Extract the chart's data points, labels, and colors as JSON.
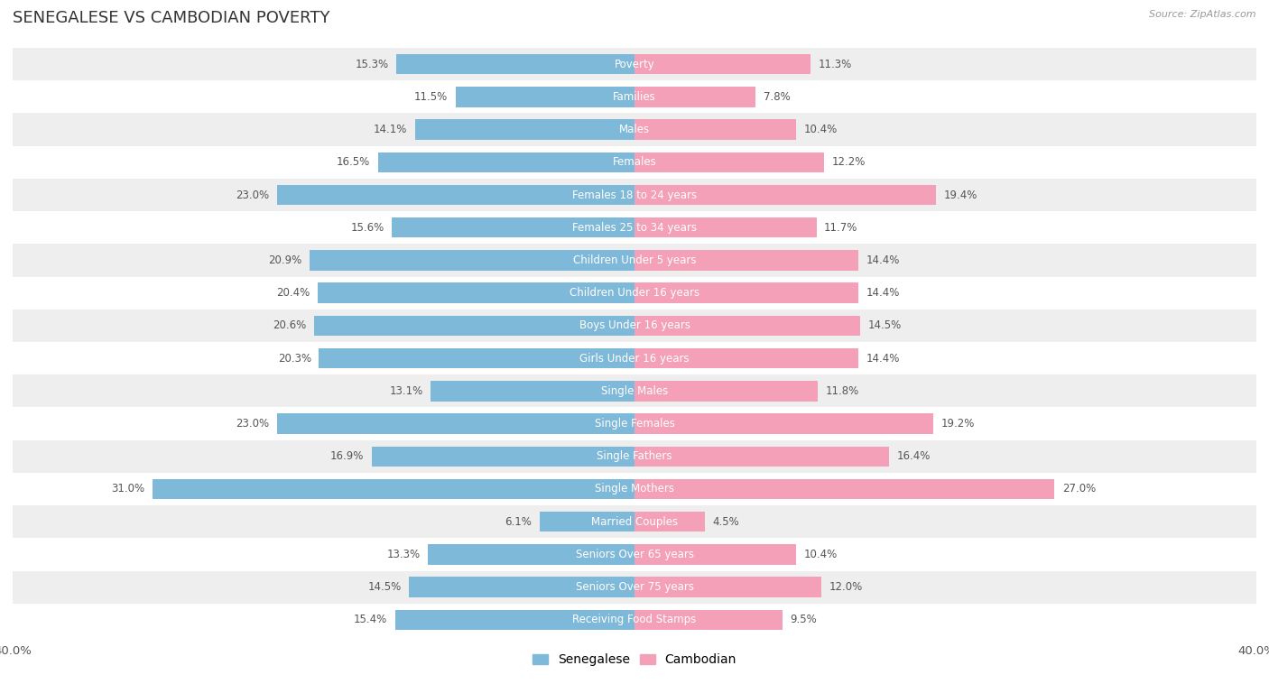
{
  "title": "SENEGALESE VS CAMBODIAN POVERTY",
  "source": "Source: ZipAtlas.com",
  "categories": [
    "Poverty",
    "Families",
    "Males",
    "Females",
    "Females 18 to 24 years",
    "Females 25 to 34 years",
    "Children Under 5 years",
    "Children Under 16 years",
    "Boys Under 16 years",
    "Girls Under 16 years",
    "Single Males",
    "Single Females",
    "Single Fathers",
    "Single Mothers",
    "Married Couples",
    "Seniors Over 65 years",
    "Seniors Over 75 years",
    "Receiving Food Stamps"
  ],
  "senegalese": [
    15.3,
    11.5,
    14.1,
    16.5,
    23.0,
    15.6,
    20.9,
    20.4,
    20.6,
    20.3,
    13.1,
    23.0,
    16.9,
    31.0,
    6.1,
    13.3,
    14.5,
    15.4
  ],
  "cambodian": [
    11.3,
    7.8,
    10.4,
    12.2,
    19.4,
    11.7,
    14.4,
    14.4,
    14.5,
    14.4,
    11.8,
    19.2,
    16.4,
    27.0,
    4.5,
    10.4,
    12.0,
    9.5
  ],
  "senegalese_color": "#7fb9d9",
  "cambodian_color": "#f4a0b8",
  "bar_height": 0.62,
  "xlim": 40.0,
  "background_color": "#ffffff",
  "row_even_color": "#eeeeee",
  "row_odd_color": "#ffffff",
  "value_color": "#555555",
  "center_label_color": "#555555",
  "legend_senegalese": "Senegalese",
  "legend_cambodian": "Cambodian",
  "title_fontsize": 13,
  "label_fontsize": 8.5,
  "value_fontsize": 8.5,
  "tick_fontsize": 9.5
}
